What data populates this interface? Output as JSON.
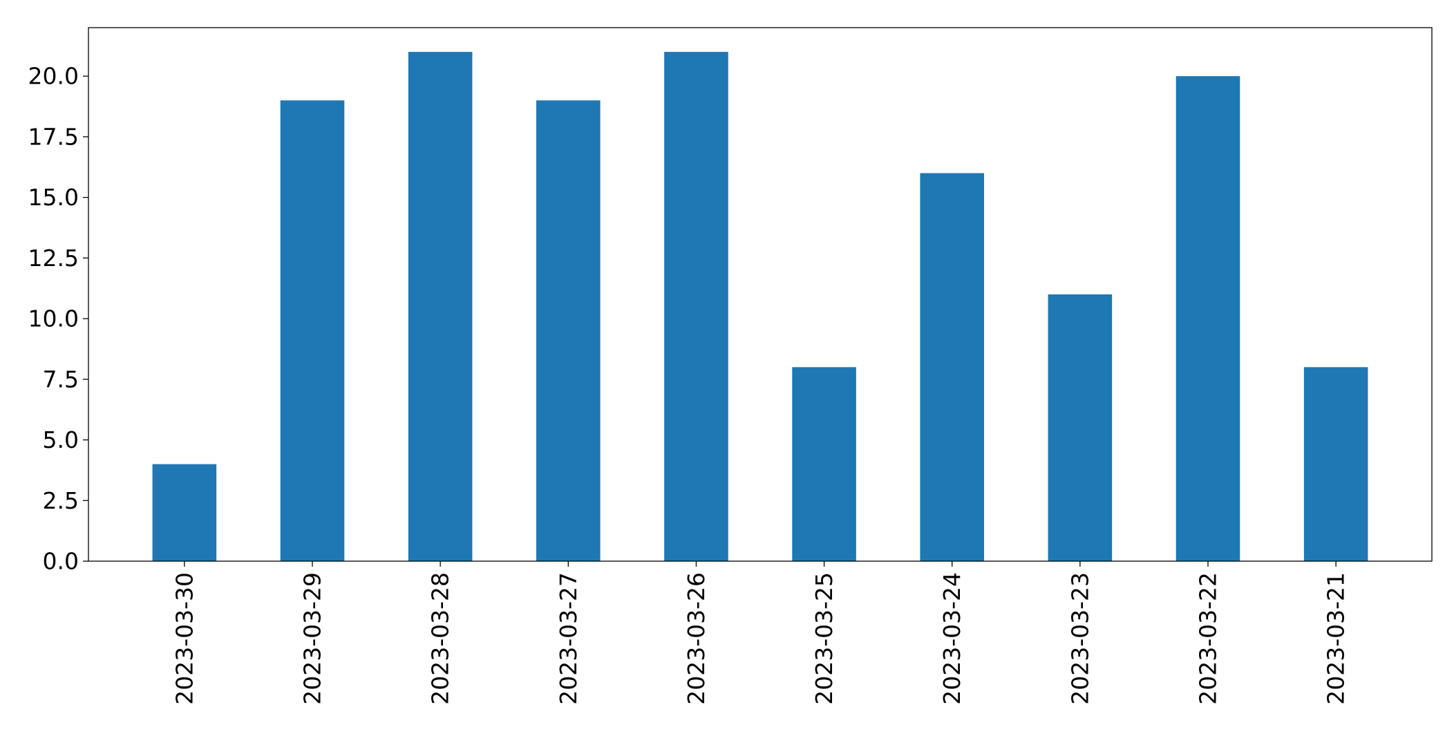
{
  "chart_data": {
    "type": "bar",
    "title": "",
    "xlabel": "",
    "ylabel": "",
    "categories": [
      "2023-03-30",
      "2023-03-29",
      "2023-03-28",
      "2023-03-27",
      "2023-03-26",
      "2023-03-25",
      "2023-03-24",
      "2023-03-23",
      "2023-03-22",
      "2023-03-21"
    ],
    "values": [
      4,
      19,
      21,
      19,
      21,
      8,
      16,
      11,
      20,
      8
    ],
    "ylim": [
      0,
      22
    ],
    "yticks": [
      "0.0",
      "2.5",
      "5.0",
      "7.5",
      "10.0",
      "12.5",
      "15.0",
      "17.5",
      "20.0"
    ],
    "bar_color": "#1f77b4",
    "grid": false,
    "legend": "none",
    "x_tick_rotation": "vertical"
  }
}
